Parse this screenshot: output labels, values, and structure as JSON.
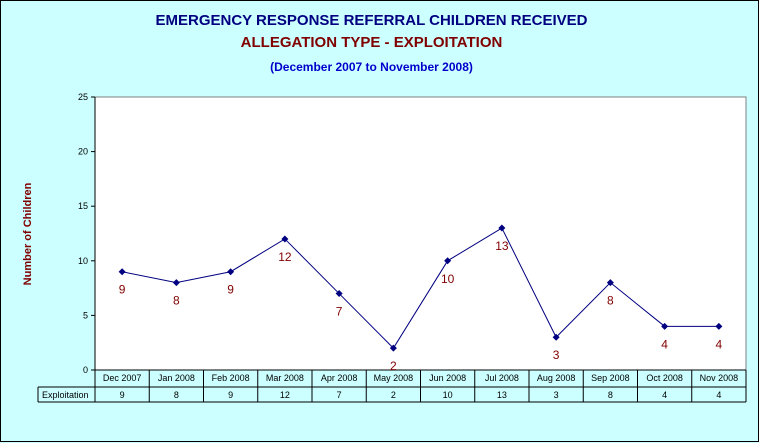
{
  "title": "EMERGENCY RESPONSE REFERRAL CHILDREN RECEIVED",
  "subtitle": "ALLEGATION TYPE - EXPLOITATION",
  "period": "(December 2007 to November 2008)",
  "colors": {
    "background": "#ccffff",
    "plot": "#ffffff",
    "line": "#000080",
    "label": "#800000",
    "title": "#000080",
    "subtitle": "#800000",
    "period": "#0000cc"
  },
  "chart_data": {
    "type": "line",
    "title": "EMERGENCY RESPONSE REFERRAL CHILDREN RECEIVED",
    "subtitle": "ALLEGATION TYPE - EXPLOITATION",
    "xlabel": "",
    "ylabel": "Number of Children",
    "ylim": [
      0,
      25
    ],
    "yticks": [
      0,
      5,
      10,
      15,
      20,
      25
    ],
    "grid": false,
    "legend": "data table",
    "categories": [
      "Dec 2007",
      "Jan 2008",
      "Feb 2008",
      "Mar 2008",
      "Apr 2008",
      "May 2008",
      "Jun 2008",
      "Jul 2008",
      "Aug 2008",
      "Sep 2008",
      "Oct 2008",
      "Nov 2008"
    ],
    "series": [
      {
        "name": "Exploitation",
        "values": [
          9,
          8,
          9,
          12,
          7,
          2,
          10,
          13,
          3,
          8,
          4,
          4
        ]
      }
    ]
  }
}
